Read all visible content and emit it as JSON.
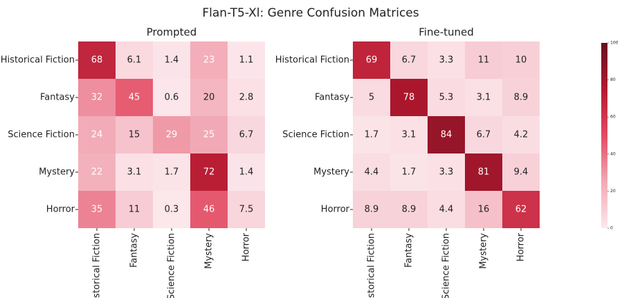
{
  "title": "Flan-T5-Xl: Genre Confusion Matrices",
  "chart_data": [
    {
      "type": "heatmap",
      "title": "Prompted",
      "x": [
        "Historical Fiction",
        "Fantasy",
        "Science Fiction",
        "Mystery",
        "Horror"
      ],
      "y": [
        "Historical Fiction",
        "Fantasy",
        "Science Fiction",
        "Mystery",
        "Horror"
      ],
      "values": [
        [
          68,
          6.1,
          1.4,
          23,
          1.1
        ],
        [
          32,
          45,
          0.6,
          20,
          2.8
        ],
        [
          24,
          15,
          29,
          25,
          6.7
        ],
        [
          22,
          3.1,
          1.7,
          72,
          1.4
        ],
        [
          35,
          11,
          0.3,
          46,
          7.5
        ]
      ]
    },
    {
      "type": "heatmap",
      "title": "Fine-tuned",
      "x": [
        "Historical Fiction",
        "Fantasy",
        "Science Fiction",
        "Mystery",
        "Horror"
      ],
      "y": [
        "Historical Fiction",
        "Fantasy",
        "Science Fiction",
        "Mystery",
        "Horror"
      ],
      "values": [
        [
          69,
          6.7,
          3.3,
          11,
          10
        ],
        [
          5,
          78,
          5.3,
          3.1,
          8.9
        ],
        [
          1.7,
          3.1,
          84,
          6.7,
          4.2
        ],
        [
          4.4,
          1.7,
          3.3,
          81,
          9.4
        ],
        [
          8.9,
          8.9,
          4.4,
          16,
          62
        ]
      ]
    }
  ],
  "colorbar": {
    "lim": [
      0,
      100
    ],
    "ticks": [
      0,
      20,
      40,
      60,
      80,
      100
    ],
    "colors": [
      "#fce8ec",
      "#f2a9b6",
      "#e34a61",
      "#b3182f",
      "#65101d"
    ]
  }
}
